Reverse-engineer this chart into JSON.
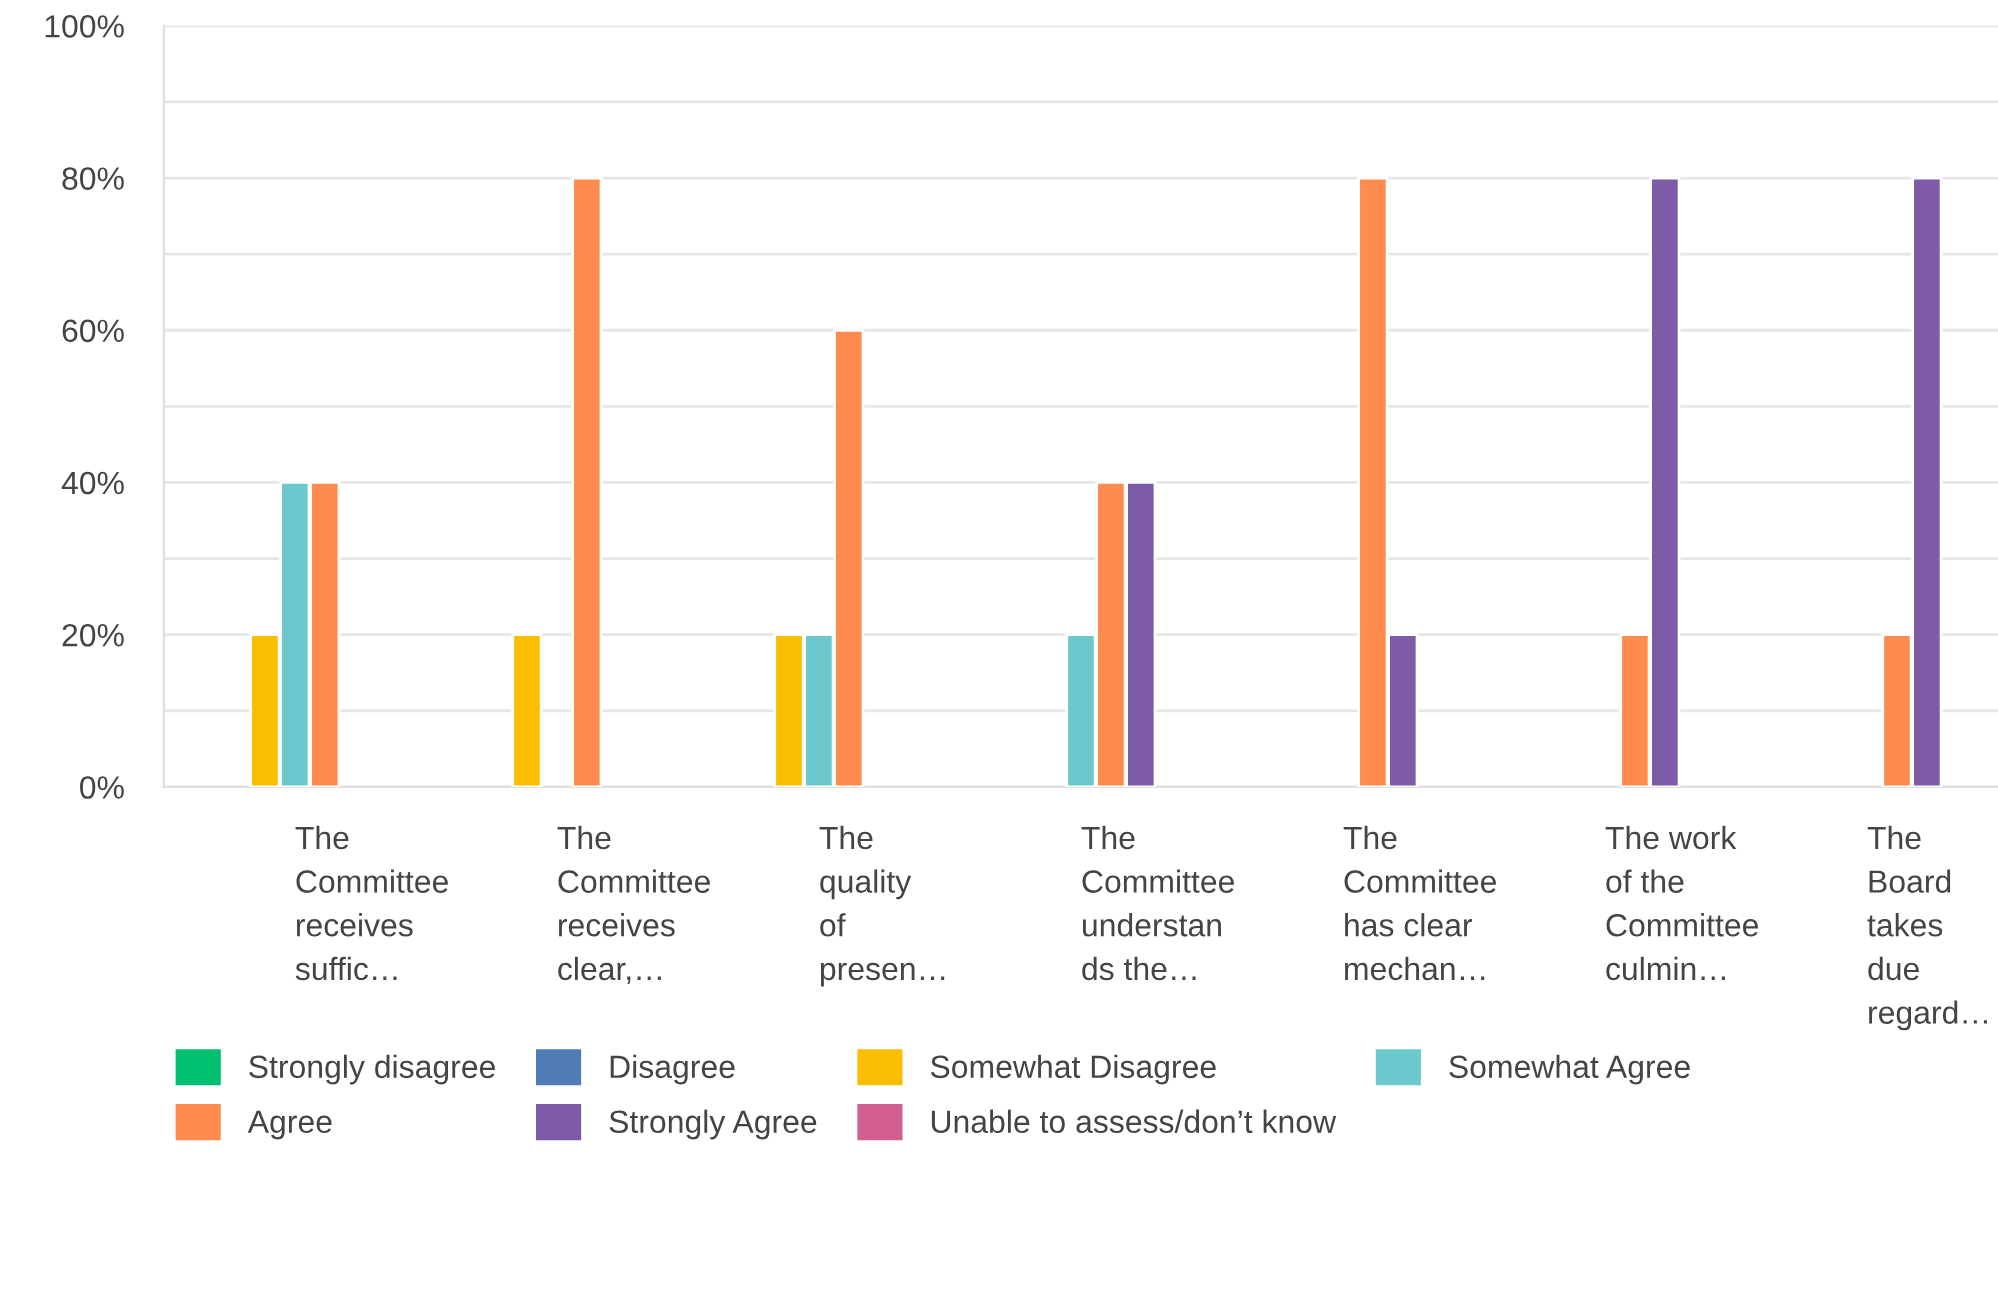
{
  "chart_data": {
    "type": "bar",
    "categories": [
      "The\nCommittee\nreceives\nsuffic…",
      "The\nCommittee\nreceives\nclear,…",
      "The\nquality\nof\npresen…",
      "The\nCommittee\nunderstan\nds the…",
      "The\nCommittee\nhas clear\nmechan…",
      "The work\nof the\nCommittee\nculmin…",
      "The\nBoard\ntakes\ndue\nregard…"
    ],
    "series": [
      {
        "name": "Strongly disagree",
        "color": "#00bf6f",
        "values": [
          0,
          0,
          0,
          0,
          0,
          0,
          0
        ]
      },
      {
        "name": "Disagree",
        "color": "#507cb6",
        "values": [
          0,
          0,
          0,
          0,
          0,
          0,
          0
        ]
      },
      {
        "name": "Somewhat Disagree",
        "color": "#f9be00",
        "values": [
          20,
          20,
          20,
          0,
          0,
          0,
          0
        ]
      },
      {
        "name": "Somewhat Agree",
        "color": "#6bc8cd",
        "values": [
          40,
          0,
          20,
          20,
          0,
          0,
          0
        ]
      },
      {
        "name": "Agree",
        "color": "#ff8b4f",
        "values": [
          40,
          80,
          60,
          40,
          80,
          20,
          20
        ]
      },
      {
        "name": "Strongly Agree",
        "color": "#7d5ba6",
        "values": [
          0,
          0,
          0,
          40,
          20,
          80,
          80
        ]
      },
      {
        "name": "Unable to assess/don’t know",
        "color": "#d25f90",
        "values": [
          0,
          0,
          0,
          0,
          0,
          0,
          0
        ]
      }
    ],
    "ylim": [
      0,
      100
    ],
    "yticks": [
      {
        "value": 0,
        "label": "0%"
      },
      {
        "value": 10,
        "label": null
      },
      {
        "value": 20,
        "label": "20%"
      },
      {
        "value": 30,
        "label": null
      },
      {
        "value": 40,
        "label": "40%"
      },
      {
        "value": 50,
        "label": null
      },
      {
        "value": 60,
        "label": "60%"
      },
      {
        "value": 70,
        "label": null
      },
      {
        "value": 80,
        "label": "80%"
      },
      {
        "value": 90,
        "label": null
      },
      {
        "value": 100,
        "label": "100%"
      }
    ],
    "grid": "y",
    "legend": "bottom"
  }
}
